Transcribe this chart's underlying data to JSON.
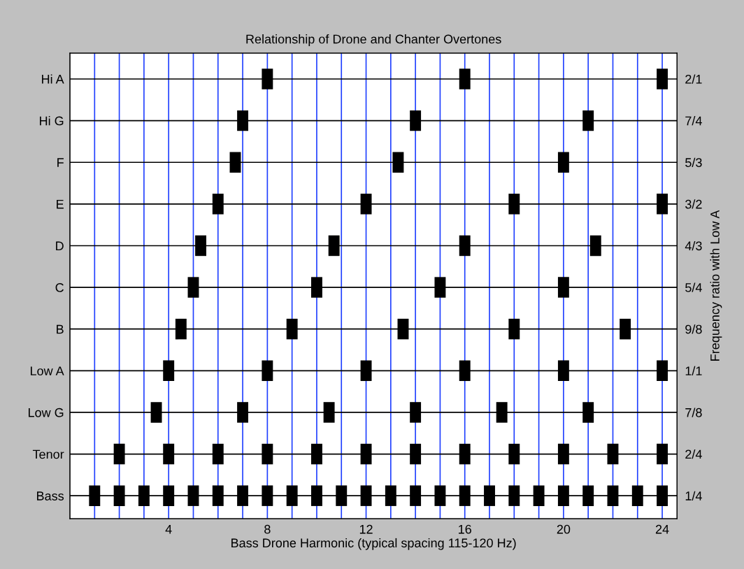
{
  "chart_data": {
    "type": "scatter",
    "orientation": "horizontal",
    "title": "Relationship of Drone and Chanter Overtones",
    "xlabel": "Bass Drone Harmonic (typical spacing 115-120 Hz)",
    "y2label": "Frequency ratio with Low A",
    "xlim": [
      0,
      24.6
    ],
    "xticks": [
      {
        "value": 1,
        "label": null
      },
      {
        "value": 2,
        "label": null
      },
      {
        "value": 3,
        "label": null
      },
      4,
      {
        "value": 5,
        "label": null
      },
      {
        "value": 6,
        "label": null
      },
      {
        "value": 7,
        "label": null
      },
      8,
      {
        "value": 9,
        "label": null
      },
      {
        "value": 10,
        "label": null
      },
      {
        "value": 11,
        "label": null
      },
      12,
      {
        "value": 13,
        "label": null
      },
      {
        "value": 14,
        "label": null
      },
      {
        "value": 15,
        "label": null
      },
      16,
      {
        "value": 17,
        "label": null
      },
      {
        "value": 18,
        "label": null
      },
      {
        "value": 19,
        "label": null
      },
      20,
      {
        "value": 21,
        "label": null
      },
      {
        "value": 22,
        "label": null
      },
      {
        "value": 23,
        "label": null
      },
      24
    ],
    "categories": [
      "Hi A",
      "Hi G",
      "F",
      "E",
      "D",
      "C",
      "B",
      "Low A",
      "Low G",
      "Tenor",
      "Bass"
    ],
    "y2_categories": [
      "2/1",
      "7/4",
      "5/3",
      "3/2",
      "4/3",
      "5/4",
      "9/8",
      "1/1",
      "7/8",
      "2/4",
      "1/4"
    ],
    "grid": true,
    "series": [
      {
        "color": "#000000",
        "values": [
          8,
          7,
          6.7,
          6,
          5.3,
          5,
          4.5,
          4,
          3.5,
          2,
          1
        ]
      },
      {
        "color": "#000000",
        "values": [
          16,
          14,
          13.3,
          12,
          10.7,
          10,
          9,
          8,
          7,
          4,
          2
        ]
      },
      {
        "color": "#000000",
        "values": [
          24,
          21,
          20,
          18,
          16,
          15,
          13.5,
          12,
          10.5,
          6,
          3
        ]
      },
      {
        "color": "#000000",
        "values": [
          null,
          null,
          null,
          24,
          21.3,
          20,
          18,
          16,
          14,
          8,
          4
        ]
      },
      {
        "color": "#000000",
        "values": [
          null,
          null,
          null,
          null,
          null,
          null,
          22.5,
          20,
          17.5,
          10,
          5
        ]
      },
      {
        "color": "#000000",
        "values": [
          null,
          null,
          null,
          null,
          null,
          null,
          null,
          24,
          21,
          12,
          6
        ]
      },
      {
        "color": "#000000",
        "values": [
          null,
          null,
          null,
          null,
          null,
          null,
          null,
          null,
          null,
          14,
          7
        ]
      },
      {
        "color": "#000000",
        "values": [
          null,
          null,
          null,
          null,
          null,
          null,
          null,
          null,
          null,
          16,
          8
        ]
      },
      {
        "color": "#000000",
        "values": [
          null,
          null,
          null,
          null,
          null,
          null,
          null,
          null,
          null,
          18,
          9
        ]
      },
      {
        "color": "#000000",
        "values": [
          null,
          null,
          null,
          null,
          null,
          null,
          null,
          null,
          null,
          20,
          10
        ]
      },
      {
        "color": "#000000",
        "values": [
          null,
          null,
          null,
          null,
          null,
          null,
          null,
          null,
          null,
          22,
          11
        ]
      },
      {
        "color": "#000000",
        "values": [
          null,
          null,
          null,
          null,
          null,
          null,
          null,
          null,
          null,
          24,
          12
        ]
      },
      {
        "color": "#000000",
        "values": [
          null,
          null,
          null,
          null,
          null,
          null,
          null,
          null,
          null,
          null,
          13
        ]
      },
      {
        "color": "#000000",
        "values": [
          null,
          null,
          null,
          null,
          null,
          null,
          null,
          null,
          null,
          null,
          14
        ]
      },
      {
        "color": "#000000",
        "values": [
          null,
          null,
          null,
          null,
          null,
          null,
          null,
          null,
          null,
          null,
          15
        ]
      },
      {
        "color": "#000000",
        "values": [
          null,
          null,
          null,
          null,
          null,
          null,
          null,
          null,
          null,
          null,
          16
        ]
      },
      {
        "color": "#000000",
        "values": [
          null,
          null,
          null,
          null,
          null,
          null,
          null,
          null,
          null,
          null,
          17
        ]
      },
      {
        "color": "#000000",
        "values": [
          null,
          null,
          null,
          null,
          null,
          null,
          null,
          null,
          null,
          null,
          18
        ]
      },
      {
        "color": "#000000",
        "values": [
          null,
          null,
          null,
          null,
          null,
          null,
          null,
          null,
          null,
          null,
          19
        ]
      },
      {
        "color": "#000000",
        "values": [
          null,
          null,
          null,
          null,
          null,
          null,
          null,
          null,
          null,
          null,
          20
        ]
      },
      {
        "color": "#000000",
        "values": [
          null,
          null,
          null,
          null,
          null,
          null,
          null,
          null,
          null,
          null,
          21
        ]
      },
      {
        "color": "#000000",
        "values": [
          null,
          null,
          null,
          null,
          null,
          null,
          null,
          null,
          null,
          null,
          22
        ]
      },
      {
        "color": "#000000",
        "values": [
          null,
          null,
          null,
          null,
          null,
          null,
          null,
          null,
          null,
          null,
          23
        ]
      },
      {
        "color": "#000000",
        "values": [
          null,
          null,
          null,
          null,
          null,
          null,
          null,
          null,
          null,
          null,
          24
        ]
      }
    ]
  }
}
